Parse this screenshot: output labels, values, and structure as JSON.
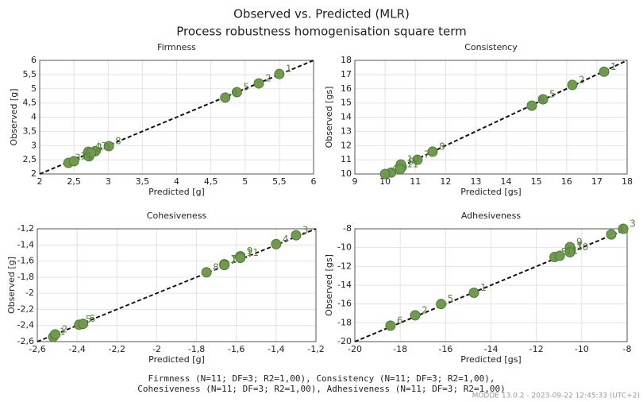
{
  "title": "Observed vs. Predicted (MLR)",
  "subtitle": "Process robustness homogenisation square term",
  "footer": [
    "Firmness (N=11; DF=3; R2=1,00), Consistency (N=11; DF=3; R2=1,00),",
    "Cohesiveness (N=11; DF=3; R2=1,00), Adhesiveness (N=11; DF=3; R2=1,00)"
  ],
  "watermark": "MODDE 13.0.2 - 2023-09-22 12:45:33 (UTC+2)",
  "chart_data": [
    {
      "type": "scatter",
      "title": "Firmness",
      "x_label": "Predicted [g]",
      "y_label": "Observed [g]",
      "color": "#6f9a4f",
      "grid": true,
      "labels": [
        "1",
        "2",
        "3",
        "4",
        "5",
        "6",
        "7",
        "8",
        "9",
        "10",
        "11"
      ],
      "x": [
        5.5,
        5.2,
        2.42,
        2.71,
        4.88,
        4.71,
        2.81,
        3.01,
        2.72,
        2.75,
        2.5
      ],
      "y": [
        5.52,
        5.19,
        2.39,
        2.78,
        4.88,
        4.69,
        2.8,
        2.98,
        2.62,
        2.75,
        2.45
      ],
      "xlim": [
        2,
        6
      ],
      "ylim": [
        2,
        6
      ],
      "xticks": [
        2,
        {
          "value": 2.5,
          "label": "2,5"
        },
        3,
        {
          "value": 3.5,
          "label": "3,5"
        },
        4,
        {
          "value": 4.5,
          "label": "4,5"
        },
        5,
        {
          "value": 5.5,
          "label": "5,5"
        },
        6
      ],
      "yticks": [
        2,
        {
          "value": 2.5,
          "label": "2,5"
        },
        3,
        {
          "value": 3.5,
          "label": "3,5"
        },
        4,
        {
          "value": 4.5,
          "label": "4,5"
        },
        5,
        {
          "value": 5.5,
          "label": "5,5"
        },
        6
      ]
    },
    {
      "type": "scatter",
      "title": "Consistency",
      "x_label": "Predicted [gs]",
      "y_label": "Observed [gs]",
      "color": "#6f9a4f",
      "grid": true,
      "labels": [
        "1",
        "2",
        "3",
        "4",
        "5",
        "6",
        "7",
        "8",
        "9",
        "10",
        "11"
      ],
      "x": [
        17.24,
        16.19,
        10.2,
        10.0,
        15.22,
        14.85,
        11.07,
        11.57,
        10.55,
        10.52,
        10.5
      ],
      "y": [
        17.2,
        16.27,
        10.1,
        10.0,
        15.26,
        14.81,
        11.0,
        11.57,
        10.5,
        10.67,
        10.34
      ],
      "xlim": [
        9,
        18
      ],
      "ylim": [
        10,
        18
      ],
      "xticks": [
        9,
        10,
        11,
        12,
        13,
        14,
        15,
        16,
        17,
        18
      ],
      "yticks": [
        10,
        11,
        12,
        13,
        14,
        15,
        16,
        17,
        18
      ]
    },
    {
      "type": "scatter",
      "title": "Cohesiveness",
      "x_label": "Predicted [g]",
      "y_label": "Observed [g]",
      "color": "#6f9a4f",
      "grid": true,
      "labels": [
        "1",
        "2",
        "3",
        "4",
        "5",
        "6",
        "7",
        "8",
        "9",
        "10",
        "11"
      ],
      "x": [
        -2.52,
        -2.51,
        -1.3,
        -1.4,
        -2.39,
        -2.37,
        -1.66,
        -1.75,
        -1.58,
        -1.66,
        -1.58
      ],
      "y": [
        -2.54,
        -2.51,
        -1.28,
        -1.39,
        -2.39,
        -2.38,
        -1.64,
        -1.74,
        -1.54,
        -1.65,
        -1.56
      ],
      "xlim": [
        -2.6,
        -1.2
      ],
      "ylim": [
        -2.6,
        -1.2
      ],
      "xticks": [
        {
          "value": -2.6,
          "label": "-2,6"
        },
        {
          "value": -2.4,
          "label": "-2,4"
        },
        {
          "value": -2.2,
          "label": "-2,2"
        },
        -2,
        {
          "value": -1.8,
          "label": "-1,8"
        },
        {
          "value": -1.6,
          "label": "-1,6"
        },
        {
          "value": -1.4,
          "label": "-1,4"
        },
        {
          "value": -1.2,
          "label": "-1,2"
        }
      ],
      "yticks": [
        {
          "value": -2.6,
          "label": "-2,6"
        },
        {
          "value": -2.4,
          "label": "-2,4"
        },
        {
          "value": -2.2,
          "label": "-2,2"
        },
        -2,
        {
          "value": -1.8,
          "label": "-1,8"
        },
        {
          "value": -1.6,
          "label": "-1,6"
        },
        {
          "value": -1.4,
          "label": "-1,4"
        },
        {
          "value": -1.2,
          "label": "-1,2"
        }
      ]
    },
    {
      "type": "scatter",
      "title": "Adhesiveness",
      "x_label": "Predicted [gs]",
      "y_label": "Observed [gs]",
      "color": "#6f9a4f",
      "grid": true,
      "labels": [
        "1",
        "2",
        "3",
        "4",
        "5",
        "6",
        "7",
        "8",
        "9",
        "10",
        "11"
      ],
      "x": [
        -14.75,
        -17.34,
        -8.17,
        -8.7,
        -16.2,
        -18.43,
        -10.5,
        -11.2,
        -10.52,
        -10.52,
        -10.97
      ],
      "y": [
        -14.8,
        -17.2,
        -8.0,
        -8.6,
        -16.0,
        -18.3,
        -10.4,
        -11.0,
        -9.94,
        -10.5,
        -10.87
      ],
      "xlim": [
        -20,
        -8
      ],
      "ylim": [
        -20,
        -8
      ],
      "xticks": [
        -20,
        -18,
        -16,
        -14,
        -12,
        -10,
        -8
      ],
      "yticks": [
        -20,
        -18,
        -16,
        -14,
        -12,
        -10,
        -8
      ]
    }
  ]
}
